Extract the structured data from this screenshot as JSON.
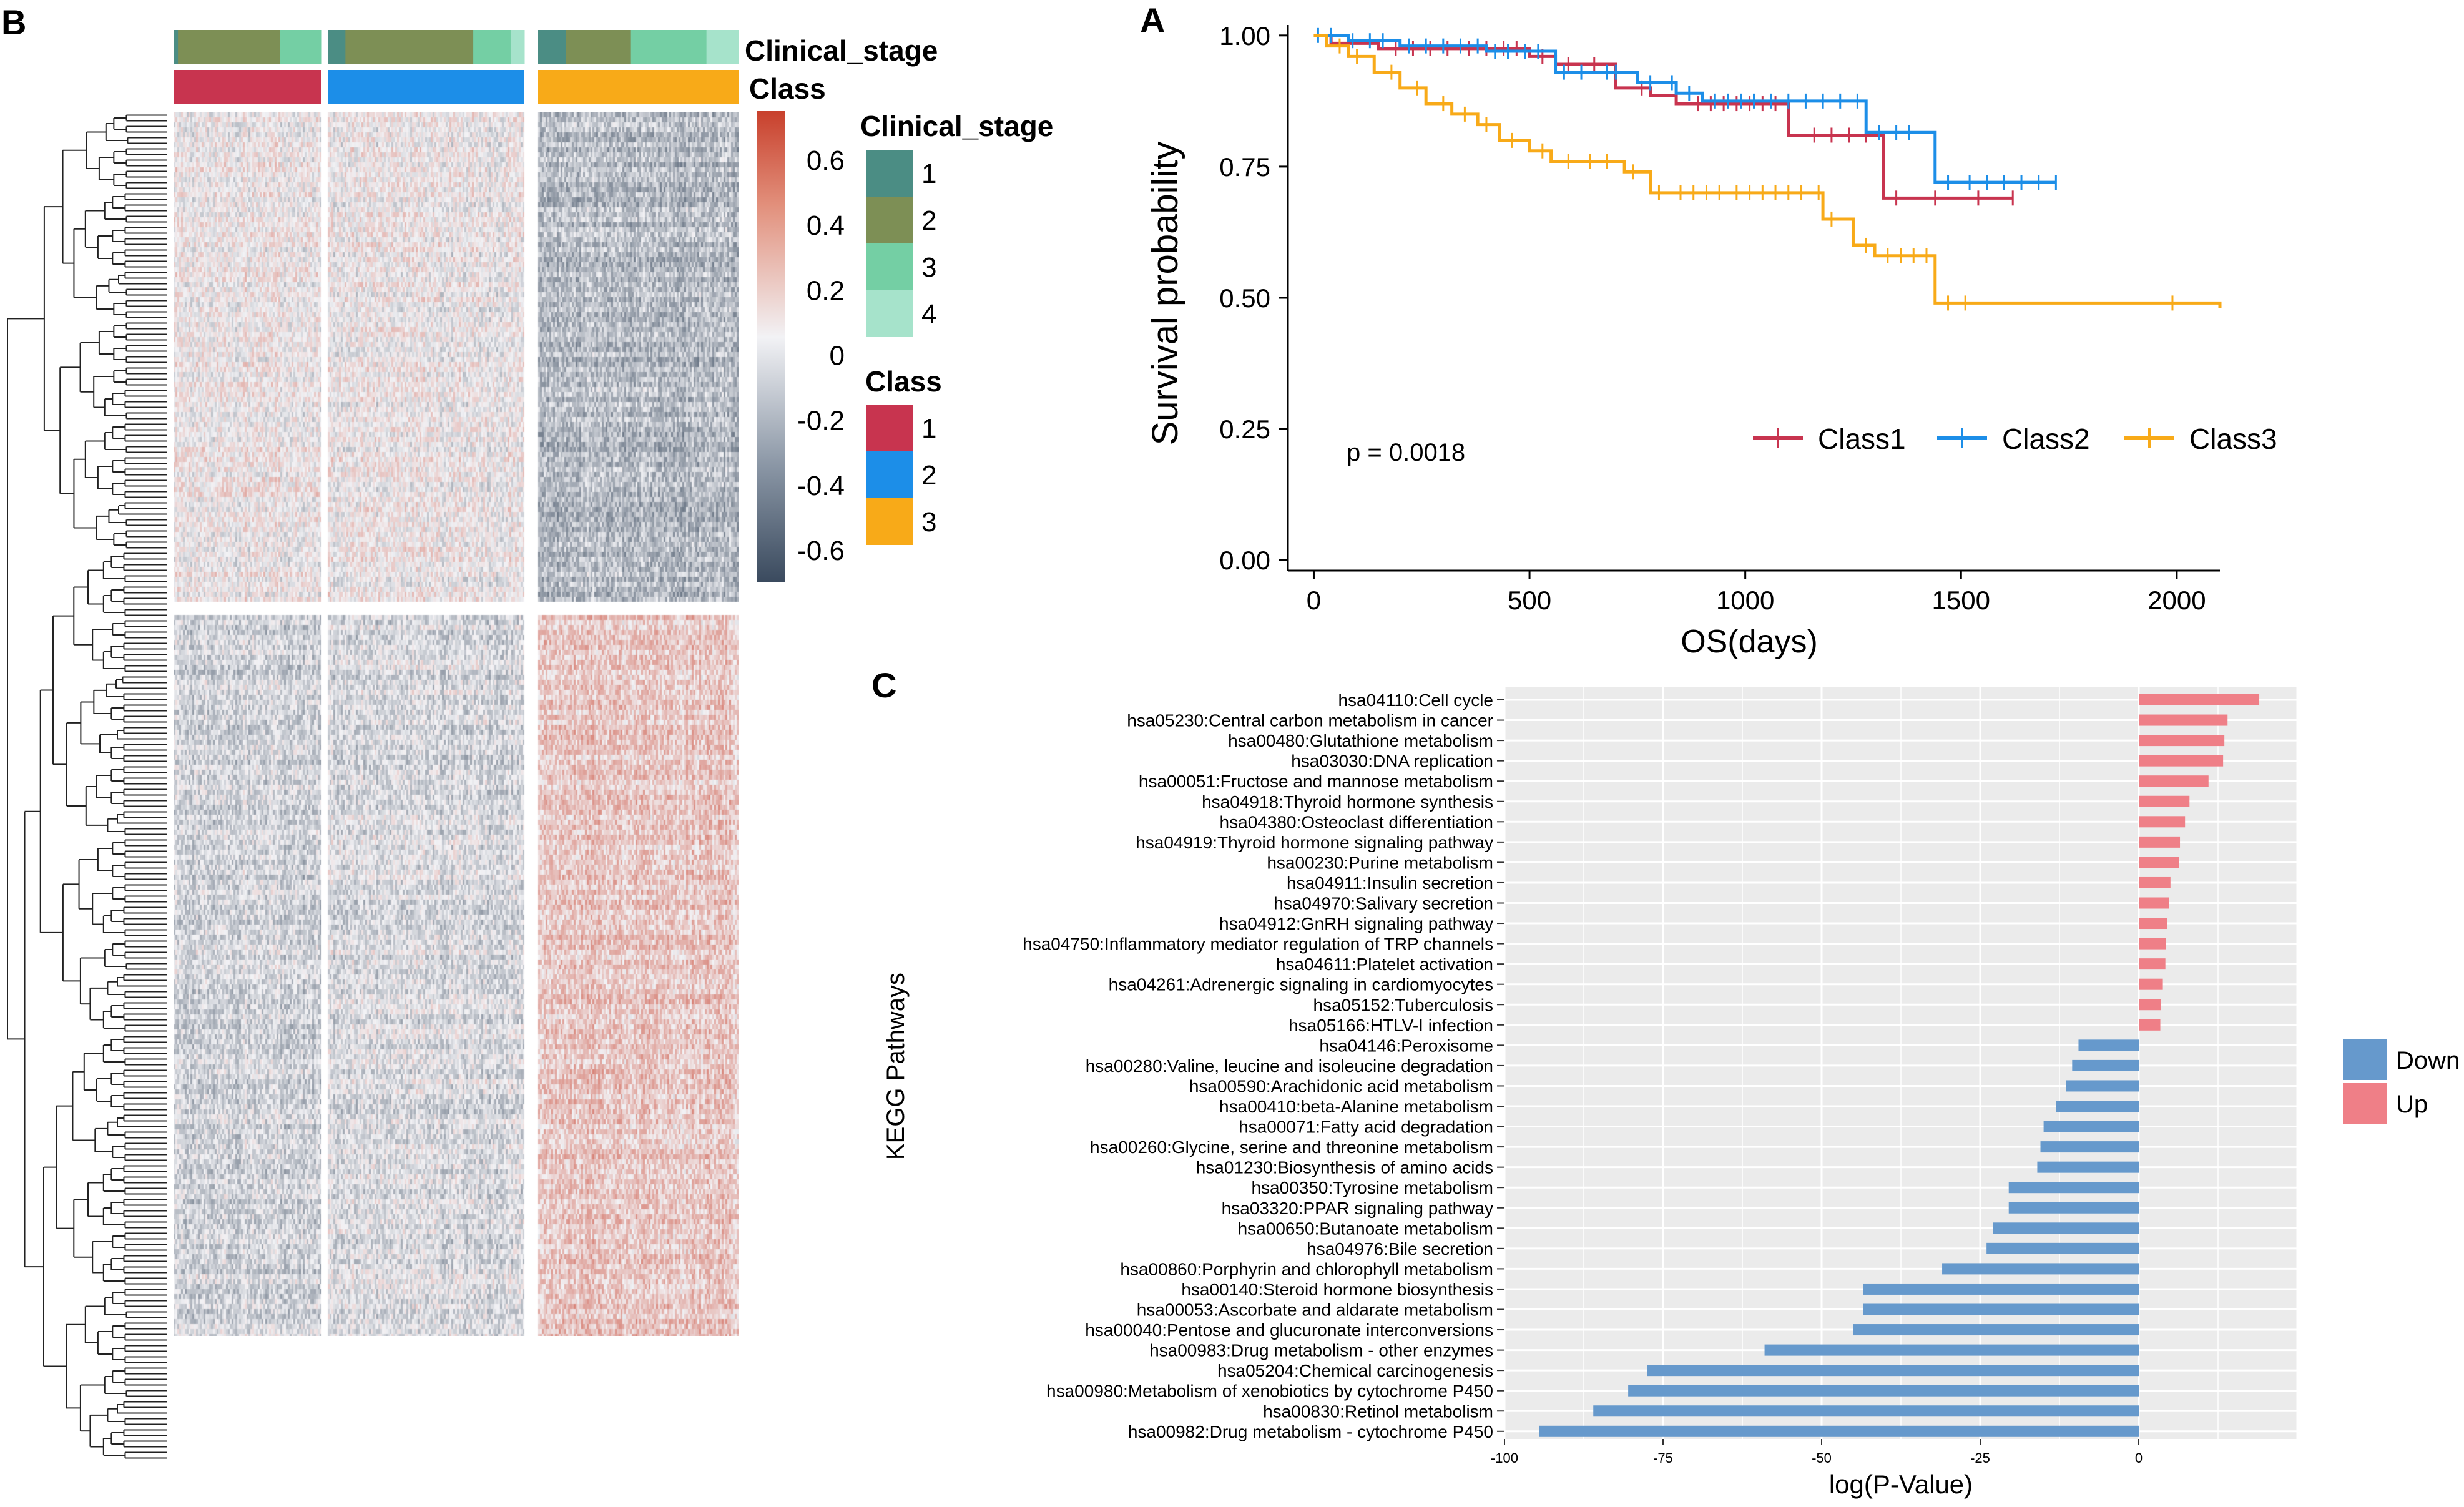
{
  "colors": {
    "class1": "#c8344f",
    "class2": "#1c8ee8",
    "class3": "#f8aa18",
    "stage1": "#4b8d84",
    "stage2": "#7d8f55",
    "stage3": "#74cfa4",
    "stage4": "#a6e3cb",
    "down": "#6699cc",
    "up": "#ef7f87",
    "panel_bg": "#ebebeb",
    "heat_high": "#c8402c",
    "heat_mid": "#f2f2f5",
    "heat_low": "#3a4a5e"
  },
  "panel_labels": {
    "a": "A",
    "b": "B",
    "c": "C"
  },
  "heatmap": {
    "annotation_labels": {
      "stage": "Clinical_stage",
      "class": "Class"
    },
    "colorbar_ticks": [
      "0.6",
      "0.4",
      "0.2",
      "0",
      "-0.2",
      "-0.4",
      "-0.6"
    ],
    "colorbar_range": [
      -0.7,
      0.75
    ],
    "legend_stage": {
      "title": "Clinical_stage",
      "items": [
        "1",
        "2",
        "3",
        "4"
      ]
    },
    "legend_class": {
      "title": "Class",
      "items": [
        "1",
        "2",
        "3"
      ]
    },
    "column_groups": [
      "Class 1",
      "Class 2",
      "Class 3"
    ],
    "row_clusters": [
      {
        "name": "cluster-top",
        "pattern": "Class 1 and 2 near zero / slightly high, Class 3 low"
      },
      {
        "name": "cluster-bottom",
        "pattern": "Class 1 and 2 low, Class 3 high"
      }
    ]
  },
  "chart_data": [
    {
      "type": "line",
      "subtype": "kaplan-meier",
      "title": "",
      "xlabel": "OS(days)",
      "ylabel": "Survival probability",
      "xlim": [
        -60,
        2100
      ],
      "ylim": [
        -0.02,
        1.02
      ],
      "x_ticks": [
        "0",
        "500",
        "1000",
        "1500",
        "2000"
      ],
      "y_ticks": [
        "0.00",
        "0.25",
        "0.50",
        "0.75",
        "1.00"
      ],
      "annotation": "p = 0.0018",
      "legend_position": "bottom-right",
      "series": [
        {
          "name": "Class1",
          "steps": [
            [
              0,
              1.0
            ],
            [
              40,
              0.985
            ],
            [
              150,
              0.975
            ],
            [
              500,
              0.96
            ],
            [
              560,
              0.945
            ],
            [
              700,
              0.9
            ],
            [
              780,
              0.885
            ],
            [
              840,
              0.87
            ],
            [
              1100,
              0.81
            ],
            [
              1320,
              0.69
            ],
            [
              1620,
              0.69
            ]
          ],
          "censors": [
            190,
            230,
            270,
            310,
            360,
            400,
            440,
            470,
            530,
            590,
            650,
            760,
            890,
            920,
            950,
            980,
            1010,
            1040,
            1070,
            1160,
            1200,
            1240,
            1280,
            1350,
            1440,
            1540,
            1620
          ]
        },
        {
          "name": "Class2",
          "steps": [
            [
              0,
              1.0
            ],
            [
              80,
              0.99
            ],
            [
              200,
              0.98
            ],
            [
              400,
              0.97
            ],
            [
              560,
              0.93
            ],
            [
              750,
              0.91
            ],
            [
              840,
              0.89
            ],
            [
              900,
              0.875
            ],
            [
              1280,
              0.815
            ],
            [
              1440,
              0.72
            ],
            [
              1720,
              0.72
            ]
          ],
          "censors": [
            10,
            40,
            90,
            130,
            160,
            220,
            260,
            300,
            340,
            380,
            420,
            450,
            490,
            520,
            580,
            620,
            680,
            700,
            780,
            830,
            870,
            930,
            960,
            990,
            1020,
            1060,
            1100,
            1140,
            1180,
            1220,
            1260,
            1310,
            1350,
            1380,
            1470,
            1520,
            1560,
            1600,
            1640,
            1680,
            1720
          ]
        },
        {
          "name": "Class3",
          "steps": [
            [
              0,
              1.0
            ],
            [
              30,
              0.98
            ],
            [
              80,
              0.96
            ],
            [
              140,
              0.93
            ],
            [
              200,
              0.9
            ],
            [
              260,
              0.87
            ],
            [
              320,
              0.85
            ],
            [
              380,
              0.83
            ],
            [
              430,
              0.8
            ],
            [
              500,
              0.78
            ],
            [
              550,
              0.76
            ],
            [
              600,
              0.76
            ],
            [
              720,
              0.74
            ],
            [
              780,
              0.7
            ],
            [
              1180,
              0.65
            ],
            [
              1250,
              0.6
            ],
            [
              1300,
              0.58
            ],
            [
              1440,
              0.49
            ],
            [
              2100,
              0.48
            ]
          ],
          "censors": [
            60,
            100,
            180,
            240,
            300,
            350,
            400,
            460,
            530,
            590,
            640,
            680,
            740,
            800,
            850,
            880,
            910,
            940,
            980,
            1010,
            1040,
            1070,
            1100,
            1130,
            1170,
            1200,
            1280,
            1330,
            1360,
            1390,
            1420,
            1470,
            1510,
            1990
          ]
        }
      ]
    },
    {
      "type": "bar",
      "orientation": "horizontal",
      "title": "",
      "xlabel": "log(P-Value)",
      "ylabel": "KEGG Pathways",
      "xlim": [
        -100,
        25
      ],
      "x_ticks": [
        -100,
        -75,
        -50,
        -25,
        0
      ],
      "grid": true,
      "legend_position": "right",
      "legend": [
        "Down",
        "Up"
      ],
      "categories": [
        "hsa04110:Cell cycle",
        "hsa05230:Central carbon metabolism in cancer",
        "hsa00480:Glutathione metabolism",
        "hsa03030:DNA replication",
        "hsa00051:Fructose and mannose metabolism",
        "hsa04918:Thyroid hormone synthesis",
        "hsa04380:Osteoclast differentiation",
        "hsa04919:Thyroid hormone signaling pathway",
        "hsa00230:Purine metabolism",
        "hsa04911:Insulin secretion",
        "hsa04970:Salivary secretion",
        "hsa04912:GnRH signaling pathway",
        "hsa04750:Inflammatory mediator regulation of TRP channels",
        "hsa04611:Platelet activation",
        "hsa04261:Adrenergic signaling in cardiomyocytes",
        "hsa05152:Tuberculosis",
        "hsa05166:HTLV-I infection",
        "hsa04146:Peroxisome",
        "hsa00280:Valine, leucine and isoleucine degradation",
        "hsa00590:Arachidonic acid metabolism",
        "hsa00410:beta-Alanine metabolism",
        "hsa00071:Fatty acid degradation",
        "hsa00260:Glycine, serine and threonine metabolism",
        "hsa01230:Biosynthesis of amino acids",
        "hsa00350:Tyrosine metabolism",
        "hsa03320:PPAR signaling pathway",
        "hsa00650:Butanoate metabolism",
        "hsa04976:Bile secretion",
        "hsa00860:Porphyrin and chlorophyll metabolism",
        "hsa00140:Steroid hormone biosynthesis",
        "hsa00053:Ascorbate and aldarate metabolism",
        "hsa00040:Pentose and glucuronate interconversions",
        "hsa00983:Drug metabolism - other enzymes",
        "hsa05204:Chemical carcinogenesis",
        "hsa00980:Metabolism of xenobiotics by cytochrome P450",
        "hsa00830:Retinol metabolism",
        "hsa00982:Drug metabolism - cytochrome P450"
      ],
      "values": [
        19,
        14,
        13.5,
        13.3,
        11,
        8,
        7.3,
        6.5,
        6.3,
        5,
        4.8,
        4.5,
        4.3,
        4.2,
        3.8,
        3.5,
        3.4,
        -9.5,
        -10.5,
        -11.5,
        -13,
        -15,
        -15.5,
        -16,
        -20.5,
        -20.5,
        -23,
        -24,
        -31,
        -43.5,
        -43.5,
        -45,
        -59,
        -77.5,
        -80.5,
        -86,
        -94.5
      ],
      "direction": [
        "Up",
        "Up",
        "Up",
        "Up",
        "Up",
        "Up",
        "Up",
        "Up",
        "Up",
        "Up",
        "Up",
        "Up",
        "Up",
        "Up",
        "Up",
        "Up",
        "Up",
        "Down",
        "Down",
        "Down",
        "Down",
        "Down",
        "Down",
        "Down",
        "Down",
        "Down",
        "Down",
        "Down",
        "Down",
        "Down",
        "Down",
        "Down",
        "Down",
        "Down",
        "Down",
        "Down",
        "Down"
      ]
    }
  ]
}
